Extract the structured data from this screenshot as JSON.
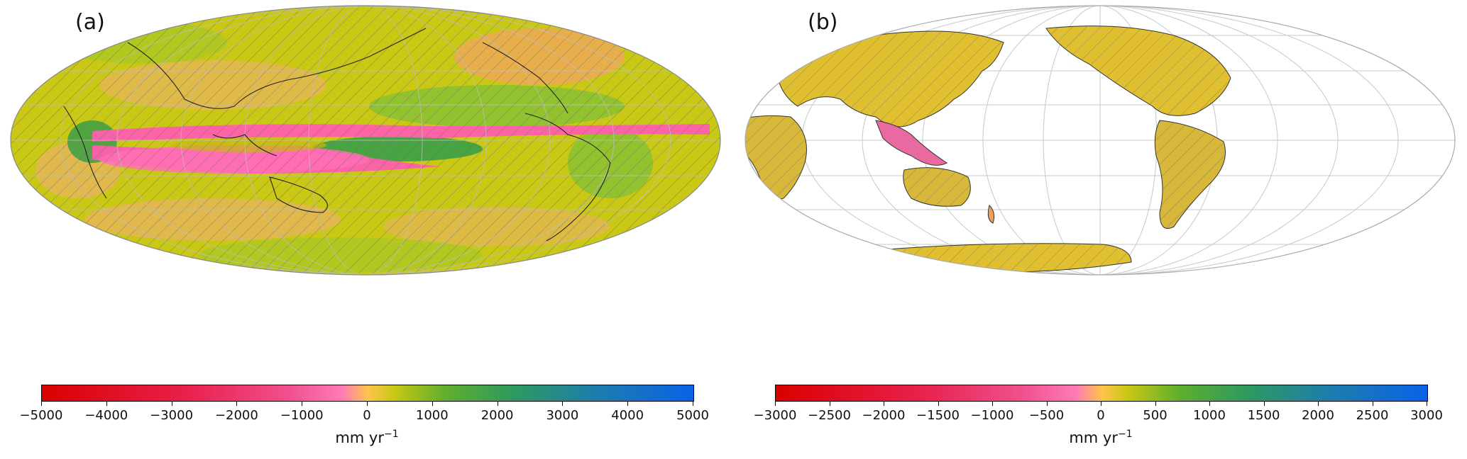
{
  "panels": [
    {
      "label": "(a)",
      "colorbar": {
        "min": -5000,
        "max": 5000,
        "ticks": [
          "−5000",
          "−4000",
          "−3000",
          "−2000",
          "−1000",
          "0",
          "1000",
          "2000",
          "3000",
          "4000",
          "5000"
        ],
        "unit_base": "mm yr",
        "unit_exp": "−1"
      }
    },
    {
      "label": "(b)",
      "colorbar": {
        "min": -3000,
        "max": 3000,
        "ticks": [
          "−3000",
          "−2500",
          "−2000",
          "−1500",
          "−1000",
          "−500",
          "0",
          "500",
          "1000",
          "1500",
          "2000",
          "2500",
          "3000"
        ],
        "unit_base": "mm yr",
        "unit_exp": "−1"
      }
    }
  ],
  "colors": {
    "neg_strong": "#d90000",
    "neg_mid": "#f0508e",
    "zero": "#ffc34d",
    "pos_mid": "#5fae2e",
    "pos_strong": "#0a62e6",
    "background_field": "#c9c814",
    "grid": "#bdbdbd"
  }
}
